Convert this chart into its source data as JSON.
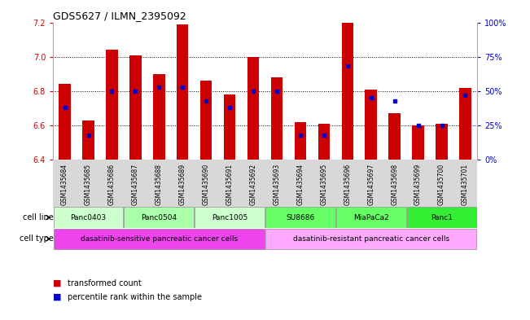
{
  "title": "GDS5627 / ILMN_2395092",
  "samples": [
    "GSM1435684",
    "GSM1435685",
    "GSM1435686",
    "GSM1435687",
    "GSM1435688",
    "GSM1435689",
    "GSM1435690",
    "GSM1435691",
    "GSM1435692",
    "GSM1435693",
    "GSM1435694",
    "GSM1435695",
    "GSM1435696",
    "GSM1435697",
    "GSM1435698",
    "GSM1435699",
    "GSM1435700",
    "GSM1435701"
  ],
  "red_values": [
    6.84,
    6.63,
    7.04,
    7.01,
    6.9,
    7.19,
    6.86,
    6.78,
    7.0,
    6.88,
    6.62,
    6.61,
    7.2,
    6.81,
    6.67,
    6.6,
    6.61,
    6.82
  ],
  "blue_values": [
    38,
    18,
    50,
    50,
    53,
    53,
    43,
    38,
    50,
    50,
    18,
    18,
    68,
    45,
    43,
    25,
    25,
    47
  ],
  "ylim_left": [
    6.4,
    7.2
  ],
  "ylim_right": [
    0,
    100
  ],
  "yticks_left": [
    6.4,
    6.6,
    6.8,
    7.0,
    7.2
  ],
  "yticks_right": [
    0,
    25,
    50,
    75,
    100
  ],
  "ytick_labels_right": [
    "0%",
    "25%",
    "50%",
    "75%",
    "100%"
  ],
  "cell_lines": [
    {
      "label": "Panc0403",
      "start": 0,
      "end": 2,
      "color": "#ccffcc"
    },
    {
      "label": "Panc0504",
      "start": 3,
      "end": 5,
      "color": "#aaffaa"
    },
    {
      "label": "Panc1005",
      "start": 6,
      "end": 8,
      "color": "#ccffcc"
    },
    {
      "label": "SU8686",
      "start": 9,
      "end": 11,
      "color": "#66ff66"
    },
    {
      "label": "MiaPaCa2",
      "start": 12,
      "end": 14,
      "color": "#66ff66"
    },
    {
      "label": "Panc1",
      "start": 15,
      "end": 17,
      "color": "#33ee33"
    }
  ],
  "cell_types": [
    {
      "label": "dasatinib-sensitive pancreatic cancer cells",
      "start": 0,
      "end": 8,
      "color": "#ee44ee"
    },
    {
      "label": "dasatinib-resistant pancreatic cancer cells",
      "start": 9,
      "end": 17,
      "color": "#ffaaff"
    }
  ],
  "bar_color": "#cc0000",
  "marker_color": "#0000cc",
  "background_color": "#ffffff",
  "bar_width": 0.5,
  "base_value": 6.4,
  "grid_yticks": [
    6.6,
    6.8,
    7.0
  ]
}
